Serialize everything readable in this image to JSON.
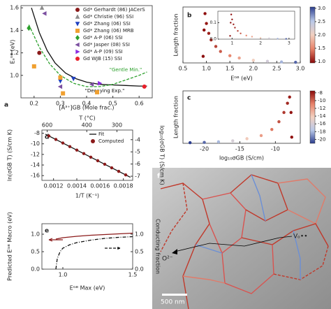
{
  "chart_data": [
    {
      "type": "scatter",
      "panel_label": "a",
      "xlabel": "[A³⁺]GB (Mole frac.)",
      "ylabel": "Eₐᴳᴮ (eV)",
      "xlim": [
        0.15,
        0.65
      ],
      "ylim": [
        0.8,
        1.62
      ],
      "xticks": [
        0.2,
        0.3,
        0.4,
        0.5,
        0.6
      ],
      "yticks": [
        {
          "value": 1,
          "label": "1.0"
        },
        1.2,
        1.4,
        1.6
      ],
      "legend": true,
      "series": [
        {
          "name": "Gd* Gerhardt (86) JACerS",
          "color": "#8b1a1a",
          "marker": "circle",
          "x": [
            0.22
          ],
          "values": [
            1.2
          ]
        },
        {
          "name": "Gd* Christie (96) SSI",
          "color": "#8c8c8c",
          "marker": "triangle-up",
          "x": [
            0.23
          ],
          "values": [
            1.6
          ]
        },
        {
          "name": "Gd* Zhang (06) SSI",
          "color": "#1f3fbf",
          "marker": "triangle-down",
          "x": [
            0.3,
            0.35
          ],
          "values": [
            0.95,
            0.97
          ]
        },
        {
          "name": "Gd* Zhang (06) MRB",
          "color": "#f0a030",
          "marker": "square",
          "x": [
            0.2,
            0.3,
            0.31,
            0.44
          ],
          "values": [
            1.08,
            0.98,
            0.84,
            0.85
          ]
        },
        {
          "name": "Gd* A-P (06) SSI",
          "color": "#2ca02c",
          "marker": "diamond",
          "x": [
            0.18
          ],
          "values": [
            1.42
          ]
        },
        {
          "name": "Gd* Jasper (08) SSI",
          "color": "#7b4fa0",
          "marker": "triangle-left",
          "x": [
            0.24,
            0.3,
            0.42
          ],
          "values": [
            1.55,
            0.9,
            0.92
          ]
        },
        {
          "name": "Gd* A-P (09) SSI",
          "color": "#8a2be2",
          "marker": "triangle-right",
          "x": [
            0.45
          ],
          "values": [
            0.93
          ]
        },
        {
          "name": "Gd WJB (15) SSI",
          "color": "#e8202a",
          "marker": "circle",
          "x": [
            0.62
          ],
          "values": [
            0.9
          ]
        }
      ],
      "curves": [
        {
          "name": "\"Decaying Exp.\"",
          "color": "#111111",
          "dash": "none",
          "x": [
            0.19,
            0.22,
            0.25,
            0.28,
            0.32,
            0.36,
            0.4,
            0.45,
            0.5,
            0.55,
            0.6,
            0.63
          ],
          "values": [
            1.6,
            1.38,
            1.22,
            1.11,
            1.02,
            0.97,
            0.94,
            0.92,
            0.915,
            0.91,
            0.905,
            0.905
          ]
        },
        {
          "name": "\"Gentle Min.\"",
          "color": "#2ca02c",
          "dash": "4 2",
          "x": [
            0.18,
            0.22,
            0.26,
            0.3,
            0.35,
            0.4,
            0.45,
            0.5,
            0.55,
            0.6,
            0.63
          ],
          "values": [
            1.45,
            1.25,
            1.1,
            1.0,
            0.93,
            0.9,
            0.9,
            0.92,
            0.96,
            1.0,
            1.03
          ]
        }
      ]
    },
    {
      "type": "scatter",
      "panel_label": "b",
      "xlabel": "Eᴳᴮ (eV)",
      "ylabel": "Length fraction",
      "xlim": [
        0.5,
        3.0
      ],
      "ylim": [
        0,
        0.17
      ],
      "xticks": [
        0.5,
        {
          "value": 1,
          "label": "1.0"
        },
        1.5,
        {
          "value": 2,
          "label": "2.0"
        },
        2.5,
        {
          "value": 3,
          "label": "3.0"
        }
      ],
      "series": [
        {
          "x": [
            0.93,
            0.95,
            0.97,
            1.0,
            1.05,
            1.1,
            1.2,
            1.3,
            1.5,
            1.7,
            2.0,
            2.3,
            2.6,
            2.9
          ],
          "values": [
            0.02,
            0.1,
            0.15,
            0.12,
            0.09,
            0.07,
            0.05,
            0.035,
            0.022,
            0.015,
            0.008,
            0.005,
            0.003,
            0.002
          ]
        }
      ],
      "colorbar": {
        "clim": [
          0.95,
          3.05
        ],
        "colormap": [
          "#8b0a0a",
          "#e8836a",
          "#f2d0c0",
          "#b9c8e8",
          "#2c3e8f"
        ],
        "ticks": [
          {
            "value": 1,
            "label": "1.0"
          },
          1.5,
          {
            "value": 2,
            "label": "2.0"
          },
          2.5,
          {
            "value": 3,
            "label": "3.0"
          }
        ]
      },
      "inset": {
        "xlim": [
          0.5,
          3.2
        ],
        "ylim": [
          0,
          0.17
        ],
        "xticks": [
          1,
          2,
          3
        ],
        "yticks": [
          {
            "value": 0,
            "label": "0.0"
          },
          0.1
        ]
      }
    },
    {
      "type": "scatter",
      "panel_label": "c",
      "xlabel": "log₁₀σGB (S/cm)",
      "ylabel": "Length fraction",
      "xlim": [
        -23,
        -6.5
      ],
      "ylim": [
        0,
        0.17
      ],
      "xticks": [
        -20,
        -15,
        -10
      ],
      "series": [
        {
          "x": [
            -22,
            -20,
            -18,
            -16,
            -14,
            -12,
            -10.5,
            -9.5,
            -8.8,
            -8.3,
            -8.0,
            -7.8,
            -7.7
          ],
          "values": [
            0.002,
            0.003,
            0.005,
            0.008,
            0.015,
            0.025,
            0.045,
            0.07,
            0.1,
            0.13,
            0.15,
            0.1,
            0.02
          ]
        }
      ],
      "colorbar": {
        "clim": [
          -21,
          -7.5
        ],
        "colormap": [
          "#2c3e8f",
          "#b9c8e8",
          "#f2d0c0",
          "#e8836a",
          "#8b0a0a"
        ],
        "ticks": [
          -8,
          -10,
          -12,
          -14,
          -16,
          -18,
          -20
        ]
      }
    },
    {
      "type": "line",
      "panel_label": "d",
      "xlabel": "1/T (K⁻¹)",
      "ylabel": "ln(σGB T) (S/cm K)",
      "y2label": "log₁₀(σGB T) (S/cm K)",
      "x2label": "T (°C)",
      "xlim": [
        0.0011,
        0.00188
      ],
      "ylim": [
        -16.9,
        -7.4
      ],
      "y2lim": [
        -7.34,
        -3.21
      ],
      "xticks": [
        0.0012,
        0.0014,
        0.0016,
        0.0018
      ],
      "yticks": [
        -8,
        -10,
        -12,
        -14,
        -16
      ],
      "y2ticks": [
        -4,
        -5,
        -6,
        -7
      ],
      "x2ticks": [
        600,
        400,
        300
      ],
      "top_axis_scale": "reciprocal-kelvin",
      "legend": true,
      "series": [
        {
          "name": "Fit",
          "color": "#111111",
          "x": [
            0.00113,
            0.00186
          ],
          "values": [
            -8.18,
            -16.31
          ]
        },
        {
          "name": "Computed",
          "color": "#8b1a1a",
          "marker": "circle",
          "x": [
            0.00116,
            0.00122,
            0.00128,
            0.00134,
            0.0014,
            0.00146,
            0.00152,
            0.00158,
            0.00164,
            0.0017,
            0.00176,
            0.00182
          ],
          "values": [
            -8.51,
            -9.18,
            -9.85,
            -10.52,
            -11.19,
            -11.85,
            -12.52,
            -13.19,
            -13.86,
            -14.53,
            -15.2,
            -15.87
          ]
        }
      ]
    },
    {
      "type": "line",
      "panel_label": "e",
      "xlabel": "Eᴳᴮ Max (eV)",
      "ylabel": "Predicted Eᴳᴮ Macro (eV)",
      "y2label": "Conducting fraction",
      "xlim": [
        0.85,
        1.5
      ],
      "ylim": [
        0,
        1.3
      ],
      "y2lim": [
        0,
        1.3
      ],
      "xticks": [
        {
          "value": 1,
          "label": "1.0"
        },
        1.5
      ],
      "yticks": [
        {
          "value": 0,
          "label": "0.0"
        },
        0.5,
        {
          "value": 1,
          "label": "1.0"
        }
      ],
      "y2ticks": [
        {
          "value": 0,
          "label": "0.0"
        },
        0.5,
        {
          "value": 1,
          "label": "1.0"
        }
      ],
      "series": [
        {
          "color": "#8b1a1a",
          "x": [
            0.95,
            1.0,
            1.1,
            1.2,
            1.3,
            1.4,
            1.5
          ],
          "values": [
            0.86,
            0.9,
            0.94,
            0.97,
            0.99,
            1.01,
            1.03
          ]
        },
        {
          "color": "#111111",
          "dash": "5 2 1 2",
          "axis": "y2",
          "x": [
            0.95,
            0.96,
            0.98,
            1.0,
            1.05,
            1.1,
            1.2,
            1.3,
            1.4,
            1.5
          ],
          "values": [
            0,
            0.3,
            0.5,
            0.6,
            0.7,
            0.76,
            0.83,
            0.88,
            0.91,
            0.93
          ]
        }
      ]
    }
  ],
  "micrograph": {
    "panel_label": "f",
    "scale_bar": "500 nm",
    "vacancy_label": "Vₒ••",
    "ion_label": "O²⁻"
  }
}
